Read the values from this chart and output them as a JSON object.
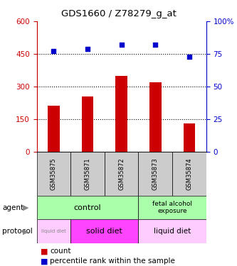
{
  "title": "GDS1660 / Z78279_g_at",
  "samples": [
    "GSM35875",
    "GSM35871",
    "GSM35872",
    "GSM35873",
    "GSM35874"
  ],
  "counts": [
    210,
    255,
    350,
    320,
    130
  ],
  "percentiles": [
    77,
    79,
    82,
    82,
    73
  ],
  "ylim_left": [
    0,
    600
  ],
  "ylim_right": [
    0,
    100
  ],
  "yticks_left": [
    0,
    150,
    300,
    450,
    600
  ],
  "yticks_right": [
    0,
    25,
    50,
    75,
    100
  ],
  "bar_color": "#cc0000",
  "scatter_color": "#0000cc",
  "bg_color": "#cccccc",
  "left_axis_color": "#cc0000",
  "right_axis_color": "#0000cc",
  "agent_control_color": "#aaffaa",
  "agent_fetal_color": "#aaffaa",
  "protocol_liquid_color": "#ffccff",
  "protocol_solid_color": "#ff44ff"
}
